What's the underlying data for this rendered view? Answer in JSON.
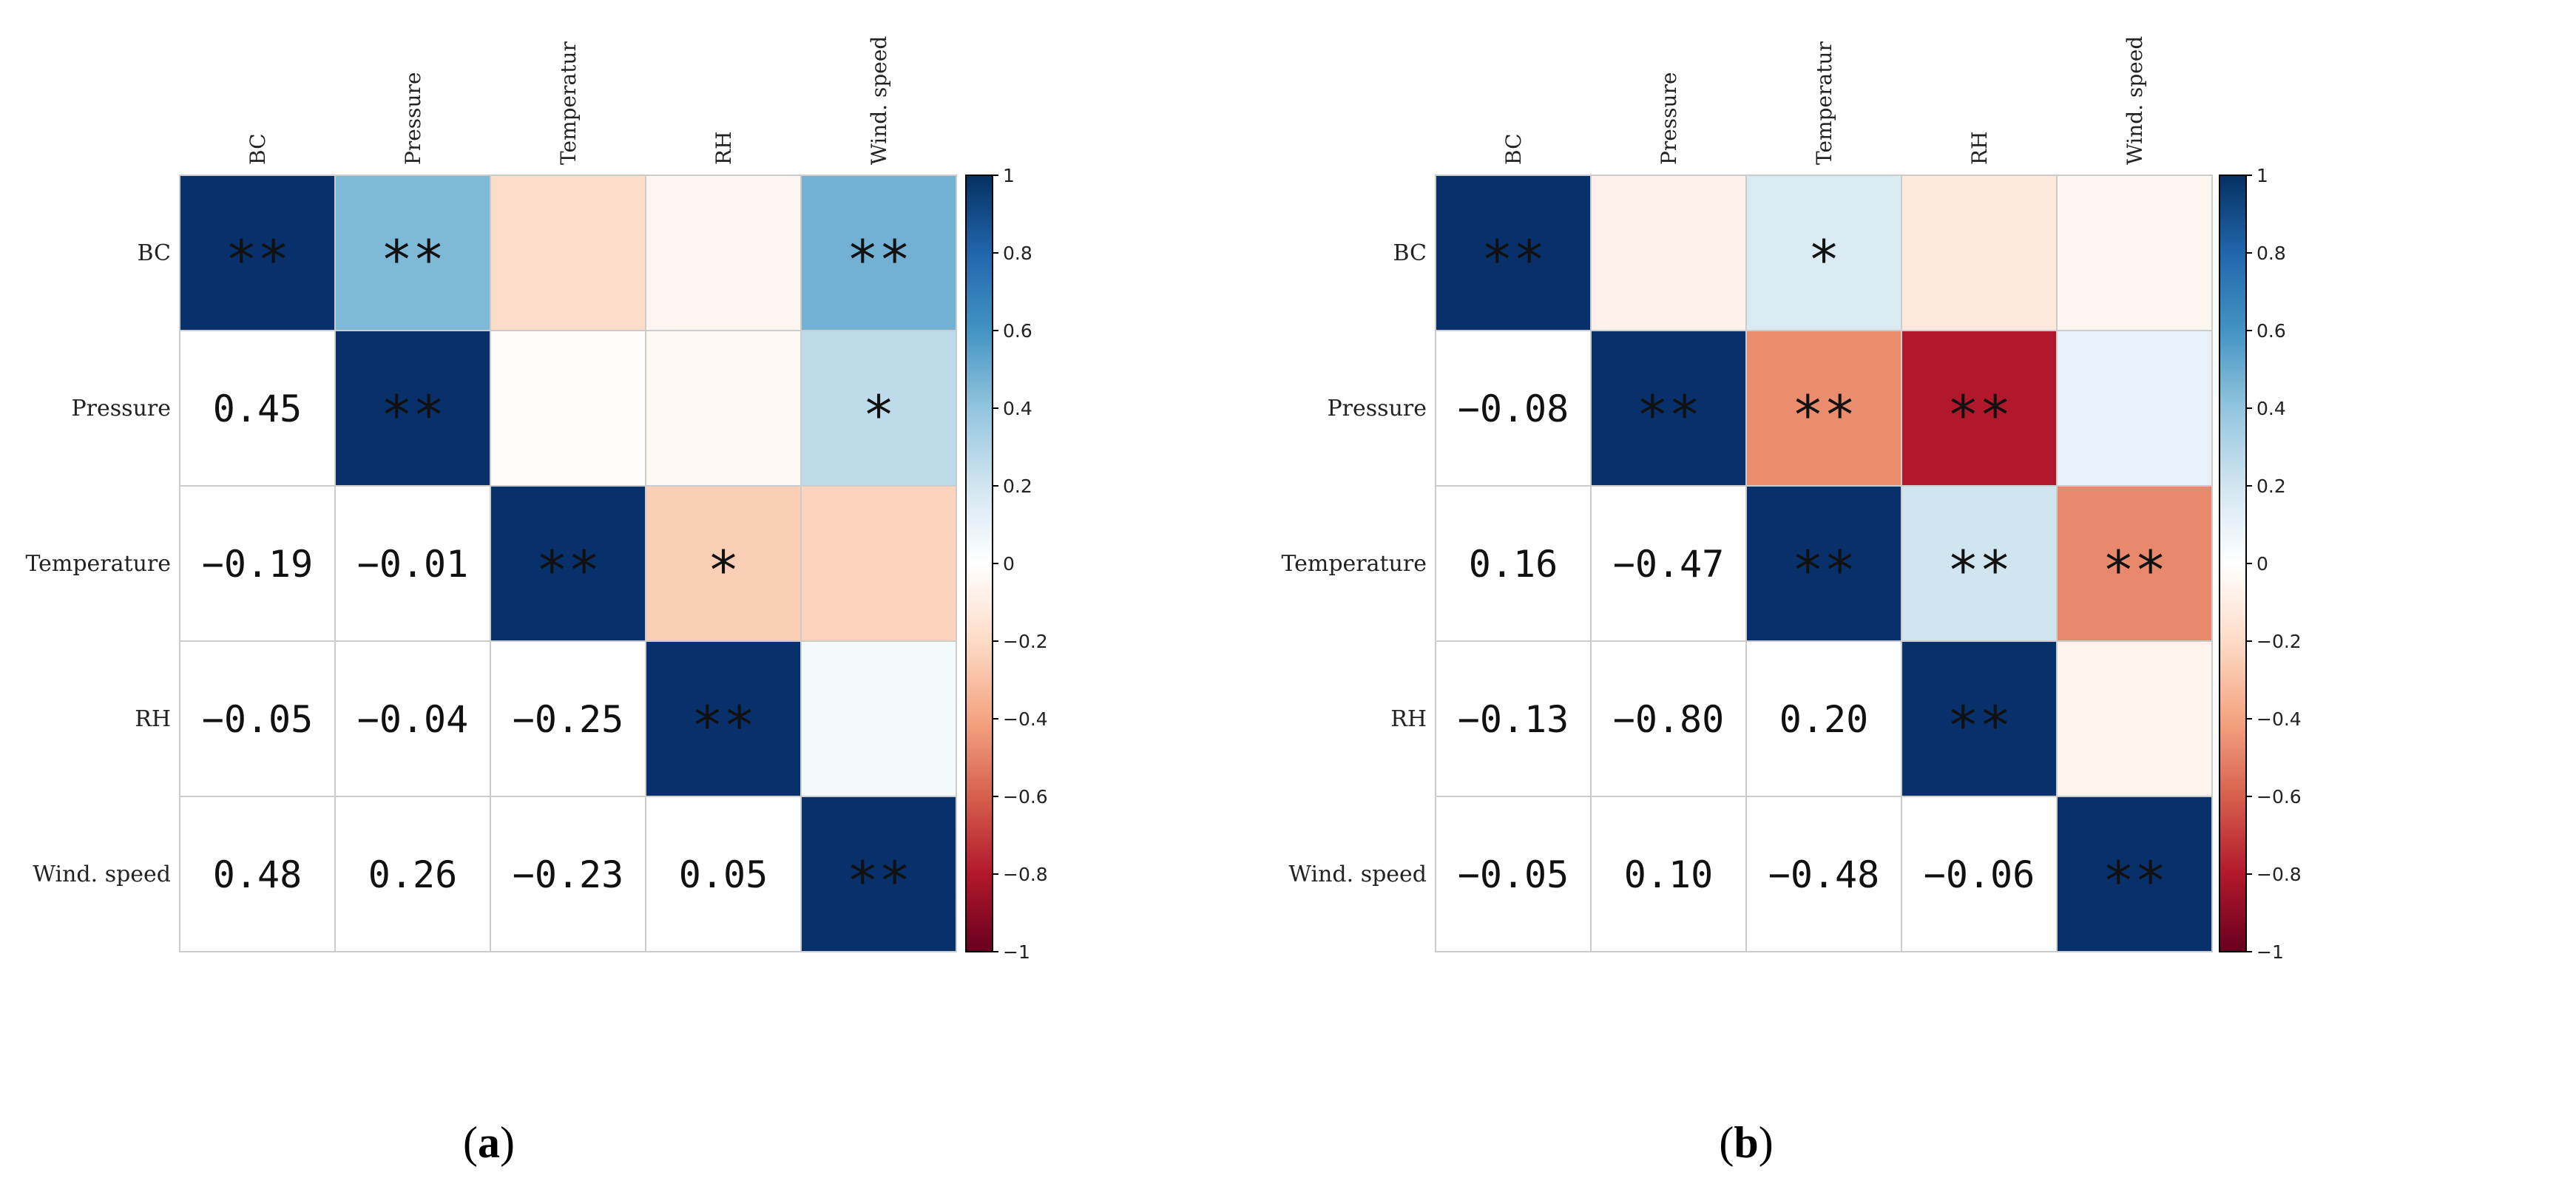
{
  "chart_data": [
    {
      "type": "heatmap",
      "panel_label": "(a)",
      "panel_letter": "a",
      "col_labels": [
        "BC",
        "Pressure",
        "Temperatur",
        "RH",
        "Wind. speed"
      ],
      "row_labels": [
        "BC",
        "Pressure",
        "Temperature",
        "RH",
        "Wind. speed"
      ],
      "values": [
        [
          1.0,
          0.45,
          -0.19,
          -0.05,
          0.48
        ],
        [
          0.45,
          1.0,
          -0.01,
          -0.04,
          0.26
        ],
        [
          -0.19,
          -0.01,
          1.0,
          -0.25,
          -0.23
        ],
        [
          -0.05,
          -0.04,
          -0.25,
          1.0,
          0.05
        ],
        [
          0.48,
          0.26,
          -0.23,
          0.05,
          1.0
        ]
      ],
      "lower_text": [
        [
          "",
          "",
          "",
          "",
          ""
        ],
        [
          "0.45",
          "",
          "",
          "",
          ""
        ],
        [
          "−0.19",
          "−0.01",
          "",
          "",
          ""
        ],
        [
          "−0.05",
          "−0.04",
          "−0.25",
          "",
          ""
        ],
        [
          "0.48",
          "0.26",
          "−0.23",
          "0.05",
          ""
        ]
      ],
      "upper_text": [
        [
          "**",
          "**",
          "",
          "",
          "**"
        ],
        [
          "",
          "**",
          "",
          "",
          "*"
        ],
        [
          "",
          "",
          "**",
          "*",
          ""
        ],
        [
          "",
          "",
          "",
          "**",
          ""
        ],
        [
          "",
          "",
          "",
          "",
          "**"
        ]
      ],
      "colorbar": {
        "range": [
          -1,
          1
        ],
        "ticks": [
          "1",
          "0.8",
          "0.6",
          "0.4",
          "0.2",
          "0",
          "−0.2",
          "−0.4",
          "−0.6",
          "−0.8",
          "−1"
        ]
      }
    },
    {
      "type": "heatmap",
      "panel_label": "(b)",
      "panel_letter": "b",
      "col_labels": [
        "BC",
        "Pressure",
        "Temperatur",
        "RH",
        "Wind. speed"
      ],
      "row_labels": [
        "BC",
        "Pressure",
        "Temperature",
        "RH",
        "Wind. speed"
      ],
      "values": [
        [
          1.0,
          -0.08,
          0.16,
          -0.13,
          -0.05
        ],
        [
          -0.08,
          1.0,
          -0.47,
          -0.8,
          0.1
        ],
        [
          0.16,
          -0.47,
          1.0,
          0.2,
          -0.48
        ],
        [
          -0.13,
          -0.8,
          0.2,
          1.0,
          -0.06
        ],
        [
          -0.05,
          0.1,
          -0.48,
          -0.06,
          1.0
        ]
      ],
      "lower_text": [
        [
          "",
          "",
          "",
          "",
          ""
        ],
        [
          "−0.08",
          "",
          "",
          "",
          ""
        ],
        [
          "0.16",
          "−0.47",
          "",
          "",
          ""
        ],
        [
          "−0.13",
          "−0.80",
          "0.20",
          "",
          ""
        ],
        [
          "−0.05",
          "0.10",
          "−0.48",
          "−0.06",
          ""
        ]
      ],
      "upper_text": [
        [
          "**",
          "",
          "*",
          "",
          ""
        ],
        [
          "",
          "**",
          "**",
          "**",
          ""
        ],
        [
          "",
          "",
          "**",
          "**",
          "**"
        ],
        [
          "",
          "",
          "",
          "**",
          ""
        ],
        [
          "",
          "",
          "",
          "",
          "**"
        ]
      ],
      "colorbar": {
        "range": [
          -1,
          1
        ],
        "ticks": [
          "1",
          "0.8",
          "0.6",
          "0.4",
          "0.2",
          "0",
          "−0.2",
          "−0.4",
          "−0.6",
          "−0.8",
          "−1"
        ]
      }
    }
  ],
  "colors": {
    "positive_stops": [
      "#ffffff",
      "#d1e5f0",
      "#92c5de",
      "#4393c3",
      "#2166ac",
      "#053061"
    ],
    "negative_stops": [
      "#ffffff",
      "#fddbc7",
      "#f4a582",
      "#d6604d",
      "#b2182b",
      "#67001f"
    ],
    "grid": "#cccccc",
    "diagonal": "#08306b"
  }
}
